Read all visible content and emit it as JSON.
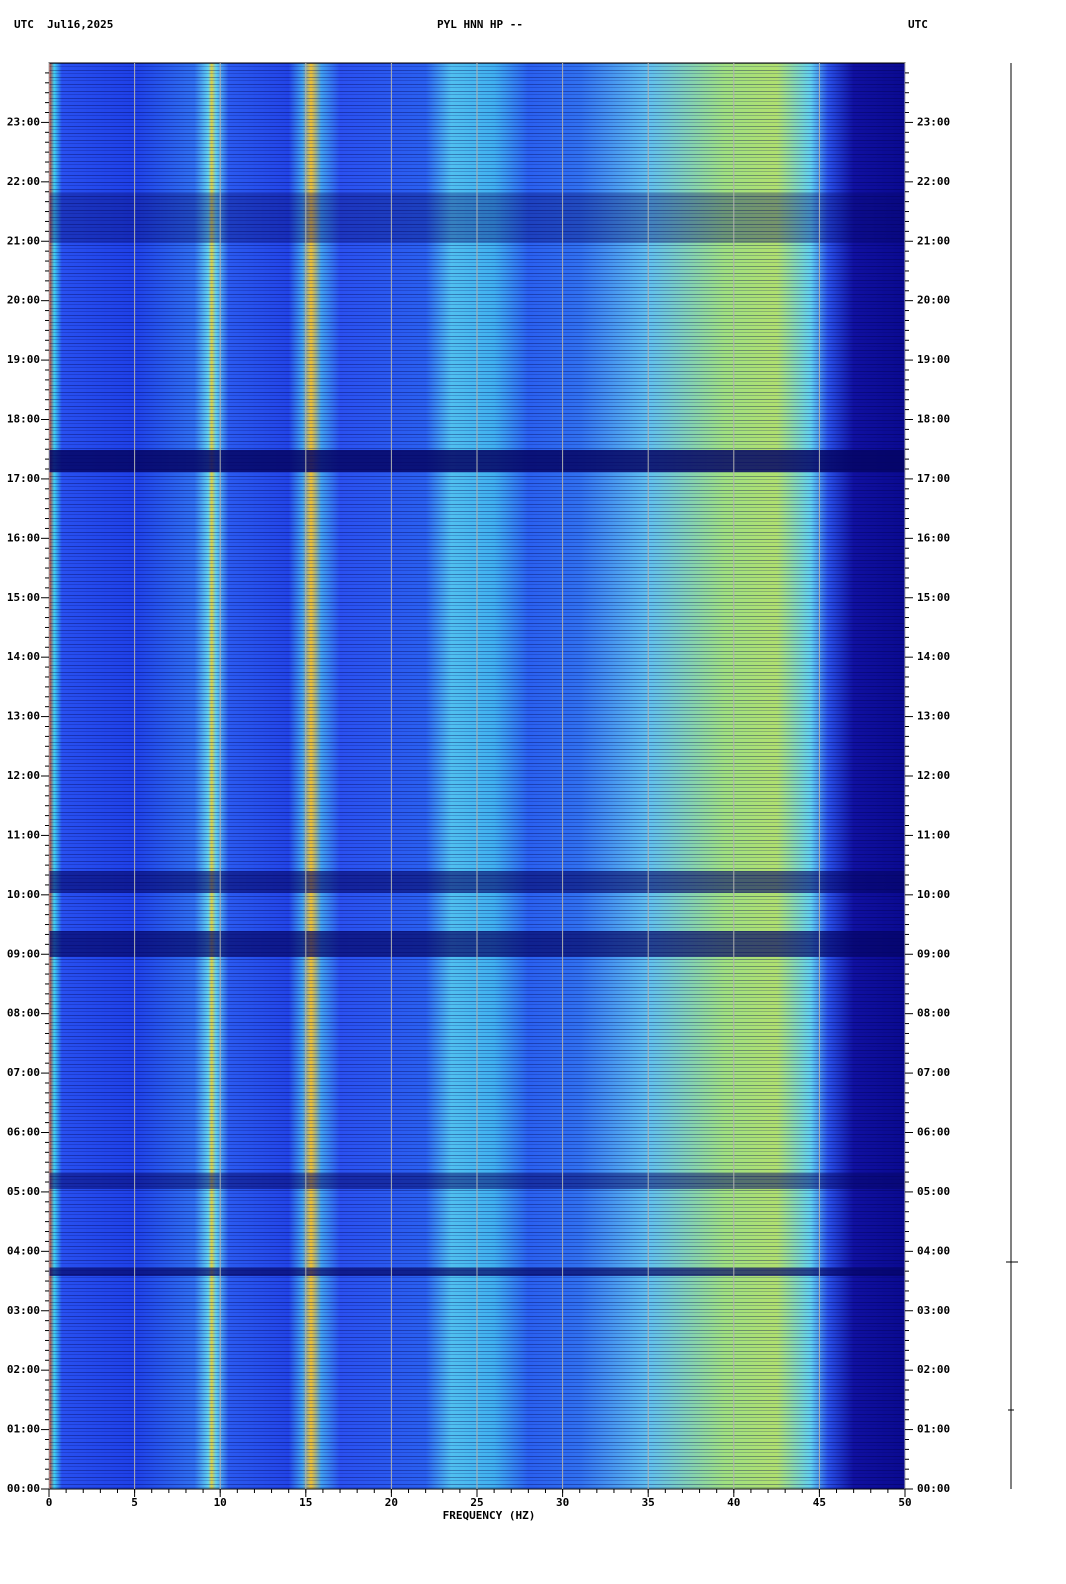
{
  "chart_data": {
    "type": "spectrogram",
    "title_left": "UTC  Jul16,2025",
    "title": "PYL HNN HP --",
    "title_right": "UTC",
    "xlabel": "FREQUENCY (HZ)",
    "xlim": [
      0,
      50
    ],
    "xticks": [
      0,
      5,
      10,
      15,
      20,
      25,
      30,
      35,
      40,
      45,
      50
    ],
    "ylim": [
      0,
      24
    ],
    "yticks": [
      {
        "value": 0,
        "label": "00:00"
      },
      {
        "value": 1,
        "label": "01:00"
      },
      {
        "value": 2,
        "label": "02:00"
      },
      {
        "value": 3,
        "label": "03:00"
      },
      {
        "value": 4,
        "label": "04:00"
      },
      {
        "value": 5,
        "label": "05:00"
      },
      {
        "value": 6,
        "label": "06:00"
      },
      {
        "value": 7,
        "label": "07:00"
      },
      {
        "value": 8,
        "label": "08:00"
      },
      {
        "value": 9,
        "label": "09:00"
      },
      {
        "value": 10,
        "label": "10:00"
      },
      {
        "value": 11,
        "label": "11:00"
      },
      {
        "value": 12,
        "label": "12:00"
      },
      {
        "value": 13,
        "label": "13:00"
      },
      {
        "value": 14,
        "label": "14:00"
      },
      {
        "value": 15,
        "label": "15:00"
      },
      {
        "value": 16,
        "label": "16:00"
      },
      {
        "value": 17,
        "label": "17:00"
      },
      {
        "value": 18,
        "label": "18:00"
      },
      {
        "value": 19,
        "label": "19:00"
      },
      {
        "value": 20,
        "label": "20:00"
      },
      {
        "value": 21,
        "label": "21:00"
      },
      {
        "value": 22,
        "label": "22:00"
      },
      {
        "value": 23,
        "label": "23:00"
      }
    ],
    "grid": true
  }
}
